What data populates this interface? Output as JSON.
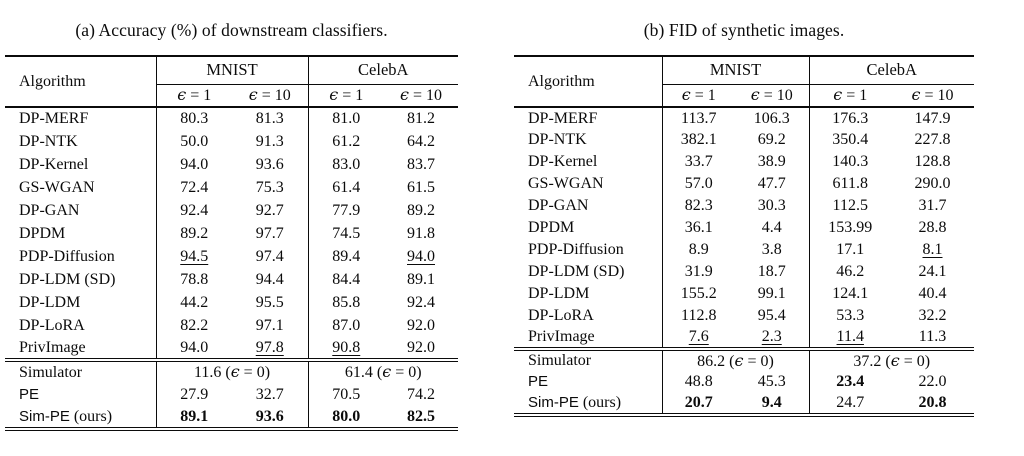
{
  "page": {
    "background": "#ffffff",
    "text_color": "#0b0b0b"
  },
  "tables": [
    {
      "id": "a",
      "caption": "(a) Accuracy (%) of downstream classifiers.",
      "header": {
        "algorithm": "Algorithm",
        "groups": [
          "MNIST",
          "CelebA"
        ],
        "epsilon_cols": [
          "ϵ = 1",
          "ϵ = 10",
          "ϵ = 1",
          "ϵ = 10"
        ]
      },
      "body_rows": [
        {
          "name": "DP-MERF",
          "cells": [
            "80.3",
            "81.3",
            "81.0",
            "81.2"
          ]
        },
        {
          "name": "DP-NTK",
          "cells": [
            "50.0",
            "91.3",
            "61.2",
            "64.2"
          ]
        },
        {
          "name": "DP-Kernel",
          "cells": [
            "94.0",
            "93.6",
            "83.0",
            "83.7"
          ]
        },
        {
          "name": "GS-WGAN",
          "cells": [
            "72.4",
            "75.3",
            "61.4",
            "61.5"
          ]
        },
        {
          "name": "DP-GAN",
          "cells": [
            "92.4",
            "92.7",
            "77.9",
            "89.2"
          ]
        },
        {
          "name": "DPDM",
          "cells": [
            "89.2",
            "97.7",
            "74.5",
            "91.8"
          ]
        },
        {
          "name": "PDP-Diffusion",
          "cells": [
            {
              "v": "94.5",
              "u": true
            },
            "97.4",
            "89.4",
            {
              "v": "94.0",
              "u": true
            }
          ]
        },
        {
          "name": "DP-LDM (SD)",
          "cells": [
            "78.8",
            "94.4",
            "84.4",
            "89.1"
          ]
        },
        {
          "name": "DP-LDM",
          "cells": [
            "44.2",
            "95.5",
            "85.8",
            "92.4"
          ]
        },
        {
          "name": "DP-LoRA",
          "cells": [
            "82.2",
            "97.1",
            "87.0",
            "92.0"
          ]
        },
        {
          "name": "PrivImage",
          "cells": [
            "94.0",
            {
              "v": "97.8",
              "u": true
            },
            {
              "v": "90.8",
              "u": true
            },
            "92.0"
          ]
        }
      ],
      "bottom_rows": [
        {
          "name": "Simulator",
          "name_font": "serif",
          "merged": [
            "11.6 (ϵ = 0)",
            "61.4 (ϵ = 0)"
          ]
        },
        {
          "name": "PE",
          "name_font": "sans",
          "cells": [
            "27.9",
            "32.7",
            "70.5",
            "74.2"
          ]
        },
        {
          "name": "Sim-PE",
          "name_suffix": " (ours)",
          "name_font": "sans",
          "cells": [
            {
              "v": "89.1",
              "b": true
            },
            {
              "v": "93.6",
              "b": true
            },
            {
              "v": "80.0",
              "b": true
            },
            {
              "v": "82.5",
              "b": true
            }
          ]
        }
      ]
    },
    {
      "id": "b",
      "caption": "(b) FID of synthetic images.",
      "header": {
        "algorithm": "Algorithm",
        "groups": [
          "MNIST",
          "CelebA"
        ],
        "epsilon_cols": [
          "ϵ = 1",
          "ϵ = 10",
          "ϵ = 1",
          "ϵ = 10"
        ]
      },
      "body_rows": [
        {
          "name": "DP-MERF",
          "cells": [
            "113.7",
            "106.3",
            "176.3",
            "147.9"
          ]
        },
        {
          "name": "DP-NTK",
          "cells": [
            "382.1",
            "69.2",
            "350.4",
            "227.8"
          ]
        },
        {
          "name": "DP-Kernel",
          "cells": [
            "33.7",
            "38.9",
            "140.3",
            "128.8"
          ]
        },
        {
          "name": "GS-WGAN",
          "cells": [
            "57.0",
            "47.7",
            "611.8",
            "290.0"
          ]
        },
        {
          "name": "DP-GAN",
          "cells": [
            "82.3",
            "30.3",
            "112.5",
            "31.7"
          ]
        },
        {
          "name": "DPDM",
          "cells": [
            "36.1",
            "4.4",
            "153.99",
            "28.8"
          ]
        },
        {
          "name": "PDP-Diffusion",
          "cells": [
            "8.9",
            "3.8",
            "17.1",
            {
              "v": "8.1",
              "u": true
            }
          ]
        },
        {
          "name": "DP-LDM (SD)",
          "cells": [
            "31.9",
            "18.7",
            "46.2",
            "24.1"
          ]
        },
        {
          "name": "DP-LDM",
          "cells": [
            "155.2",
            "99.1",
            "124.1",
            "40.4"
          ]
        },
        {
          "name": "DP-LoRA",
          "cells": [
            "112.8",
            "95.4",
            "53.3",
            "32.2"
          ]
        },
        {
          "name": "PrivImage",
          "cells": [
            {
              "v": "7.6",
              "u": true
            },
            {
              "v": "2.3",
              "u": true
            },
            {
              "v": "11.4",
              "u": true
            },
            "11.3"
          ]
        }
      ],
      "bottom_rows": [
        {
          "name": "Simulator",
          "name_font": "serif",
          "merged": [
            "86.2 (ϵ = 0)",
            "37.2 (ϵ = 0)"
          ]
        },
        {
          "name": "PE",
          "name_font": "sans",
          "cells": [
            "48.8",
            "45.3",
            {
              "v": "23.4",
              "b": true
            },
            "22.0"
          ]
        },
        {
          "name": "Sim-PE",
          "name_suffix": " (ours)",
          "name_font": "sans",
          "cells": [
            {
              "v": "20.7",
              "b": true
            },
            {
              "v": "9.4",
              "b": true
            },
            "24.7",
            {
              "v": "20.8",
              "b": true
            }
          ]
        }
      ]
    }
  ]
}
